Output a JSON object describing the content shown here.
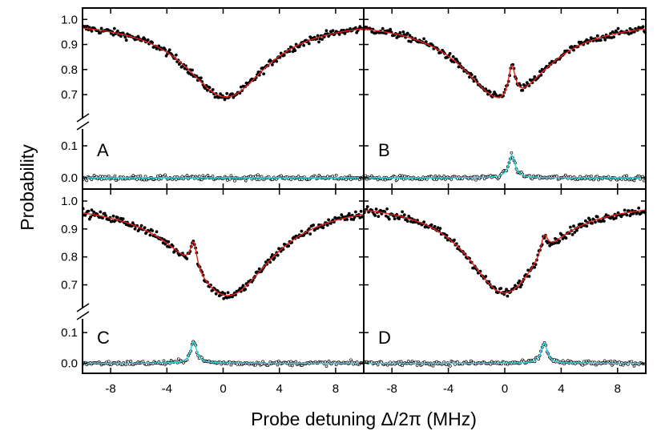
{
  "chart_data": {
    "type": "scatter",
    "title": "",
    "xlabel": "Probe detuning Δ/2π (MHz)",
    "ylabel": "Probability",
    "xlim": [
      -10,
      10
    ],
    "x_ticks": [
      -8,
      -4,
      0,
      4,
      8
    ],
    "upper_ylim": [
      0.63,
      1.02
    ],
    "upper_y_ticks": [
      0.7,
      0.8,
      0.9,
      1.0
    ],
    "upper_y_tick_labels": [
      "0.7",
      "0.8",
      "0.9",
      "1.0"
    ],
    "lower_ylim": [
      -0.025,
      0.145
    ],
    "lower_y_ticks": [
      0.0,
      0.1
    ],
    "lower_y_tick_labels": [
      "0.0",
      "0.1"
    ],
    "grid": false,
    "colors": {
      "fit_upper": "#e8201e",
      "fit_lower": "#20d8e0",
      "points_upper": "#000000",
      "points_lower": "#000000"
    },
    "panels": [
      {
        "label": "A",
        "dip_center": 0.2,
        "dip_depth": 0.31,
        "dip_width": 3.6,
        "peak_center": null,
        "peak_amp": 0,
        "peak_width": 0.35,
        "lower_peak": 0.0
      },
      {
        "label": "B",
        "dip_center": 0.0,
        "dip_depth": 0.33,
        "dip_width": 3.6,
        "peak_center": 0.5,
        "peak_amp": 0.14,
        "peak_width": 0.32,
        "lower_peak": 0.07
      },
      {
        "label": "C",
        "dip_center": 0.3,
        "dip_depth": 0.34,
        "dip_width": 3.9,
        "peak_center": -2.1,
        "peak_amp": 0.1,
        "peak_width": 0.3,
        "lower_peak": 0.07
      },
      {
        "label": "D",
        "dip_center": 0.0,
        "dip_depth": 0.33,
        "dip_width": 3.3,
        "peak_center": 2.8,
        "peak_amp": 0.07,
        "peak_width": 0.3,
        "lower_peak": 0.065
      }
    ]
  }
}
